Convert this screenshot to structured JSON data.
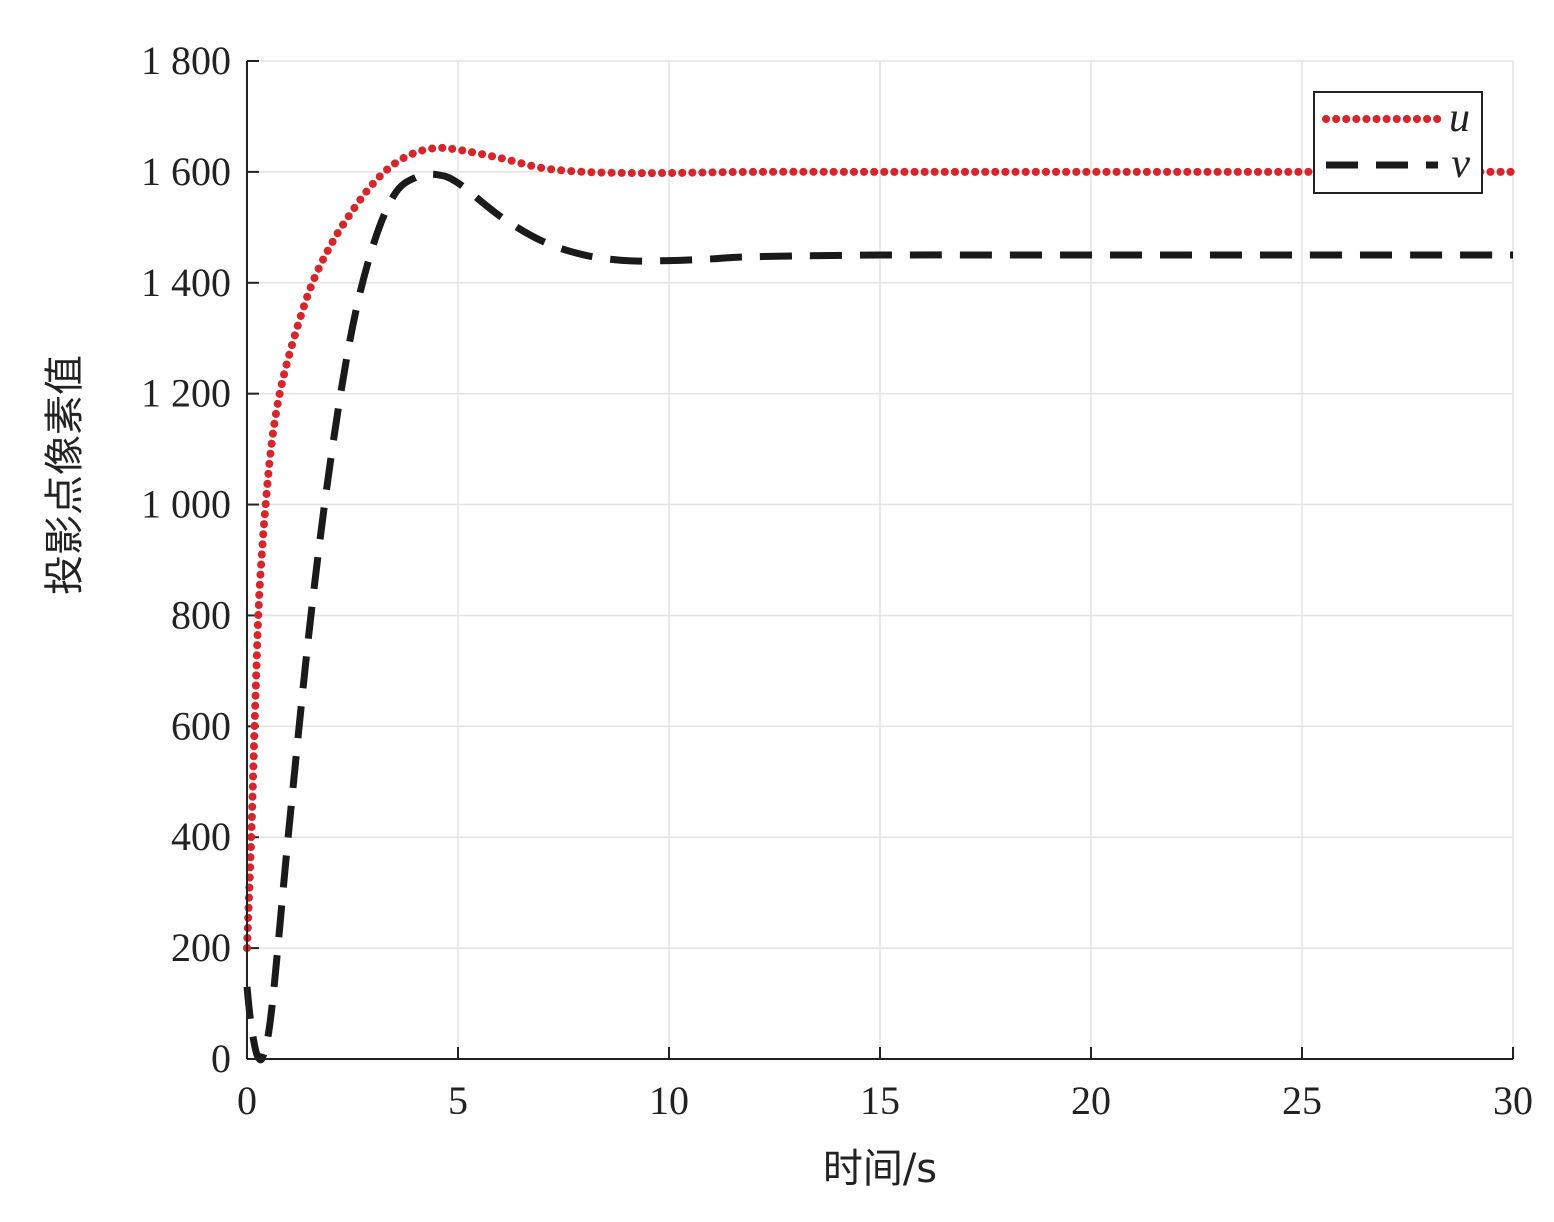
{
  "chart_data": {
    "type": "line",
    "xlabel": "时间/s",
    "ylabel": "投影点像素值",
    "xlim": [
      0,
      30
    ],
    "ylim": [
      0,
      1800
    ],
    "x_ticks": [
      0,
      5,
      10,
      15,
      20,
      25,
      30
    ],
    "x_tick_labels": [
      "0",
      "5",
      "10",
      "15",
      "20",
      "25",
      "30"
    ],
    "y_ticks": [
      0,
      200,
      400,
      600,
      800,
      1000,
      1200,
      1400,
      1600,
      1800
    ],
    "y_tick_labels": [
      "0",
      "200",
      "400",
      "600",
      "800",
      "1 000",
      "1 200",
      "1 400",
      "1 600",
      "1 800"
    ],
    "grid": true,
    "legend_position": "top-right",
    "series": [
      {
        "name": "u",
        "color": "#d7262b",
        "style": "dotted",
        "points": [
          [
            0,
            200
          ],
          [
            0.1,
            400
          ],
          [
            0.2,
            650
          ],
          [
            0.3,
            850
          ],
          [
            0.5,
            1050
          ],
          [
            0.7,
            1170
          ],
          [
            1.0,
            1270
          ],
          [
            1.5,
            1390
          ],
          [
            2.0,
            1470
          ],
          [
            2.5,
            1530
          ],
          [
            3.0,
            1580
          ],
          [
            3.5,
            1615
          ],
          [
            4.0,
            1635
          ],
          [
            4.5,
            1643
          ],
          [
            5.0,
            1640
          ],
          [
            6.0,
            1625
          ],
          [
            7.0,
            1607
          ],
          [
            8.0,
            1600
          ],
          [
            9.0,
            1598
          ],
          [
            10.0,
            1598
          ],
          [
            12.0,
            1600
          ],
          [
            15.0,
            1600
          ],
          [
            20.0,
            1600
          ],
          [
            25.0,
            1600
          ],
          [
            30.0,
            1600
          ]
        ]
      },
      {
        "name": "v",
        "color": "#1a1a1a",
        "style": "dashed",
        "points": [
          [
            0,
            130
          ],
          [
            0.1,
            60
          ],
          [
            0.25,
            5
          ],
          [
            0.4,
            10
          ],
          [
            0.6,
            100
          ],
          [
            1.0,
            420
          ],
          [
            1.5,
            790
          ],
          [
            2.0,
            1090
          ],
          [
            2.5,
            1320
          ],
          [
            3.0,
            1470
          ],
          [
            3.5,
            1560
          ],
          [
            4.0,
            1590
          ],
          [
            4.5,
            1595
          ],
          [
            5.0,
            1580
          ],
          [
            6.0,
            1520
          ],
          [
            7.0,
            1475
          ],
          [
            8.0,
            1450
          ],
          [
            9.0,
            1440
          ],
          [
            10.0,
            1440
          ],
          [
            11.0,
            1443
          ],
          [
            12.0,
            1447
          ],
          [
            15.0,
            1450
          ],
          [
            20.0,
            1450
          ],
          [
            25.0,
            1450
          ],
          [
            30.0,
            1450
          ]
        ]
      }
    ]
  }
}
